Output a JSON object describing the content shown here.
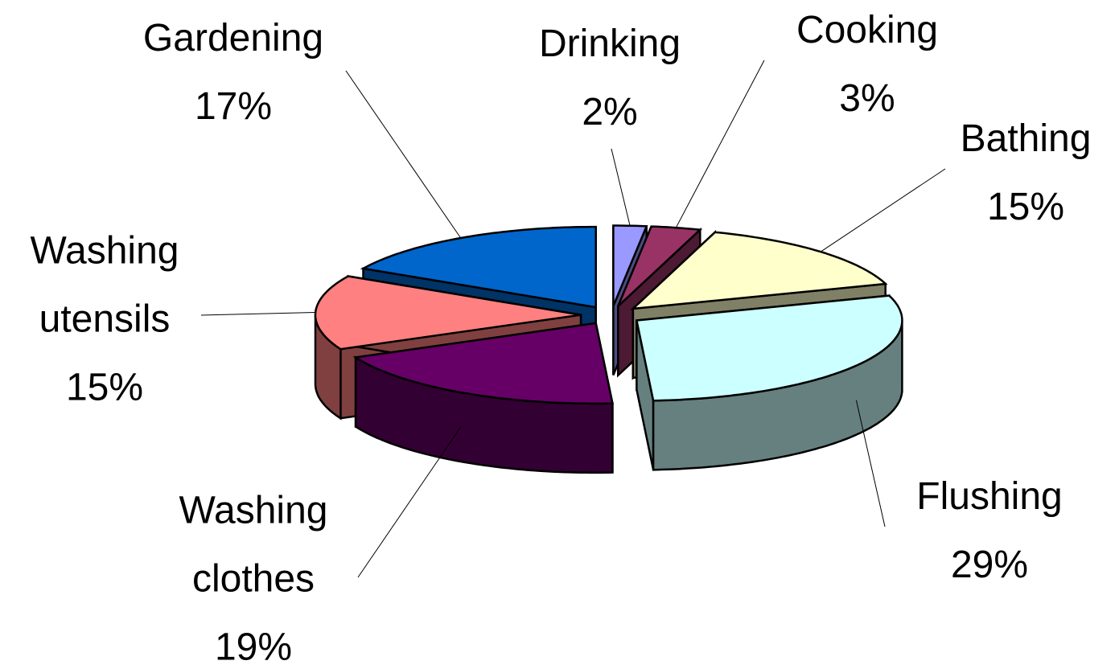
{
  "chart_data": {
    "type": "pie3d",
    "categories": [
      "Drinking",
      "Cooking",
      "Bathing",
      "Flushing",
      "Washing clothes",
      "Washing utensils",
      "Gardening"
    ],
    "values": [
      2,
      3,
      15,
      29,
      19,
      15,
      17
    ],
    "value_labels": [
      "2%",
      "3%",
      "15%",
      "29%",
      "19%",
      "15%",
      "17%"
    ],
    "colors": [
      "#9999ff",
      "#993366",
      "#ffffcc",
      "#ccffff",
      "#660066",
      "#ff8080",
      "#0066cc"
    ]
  }
}
